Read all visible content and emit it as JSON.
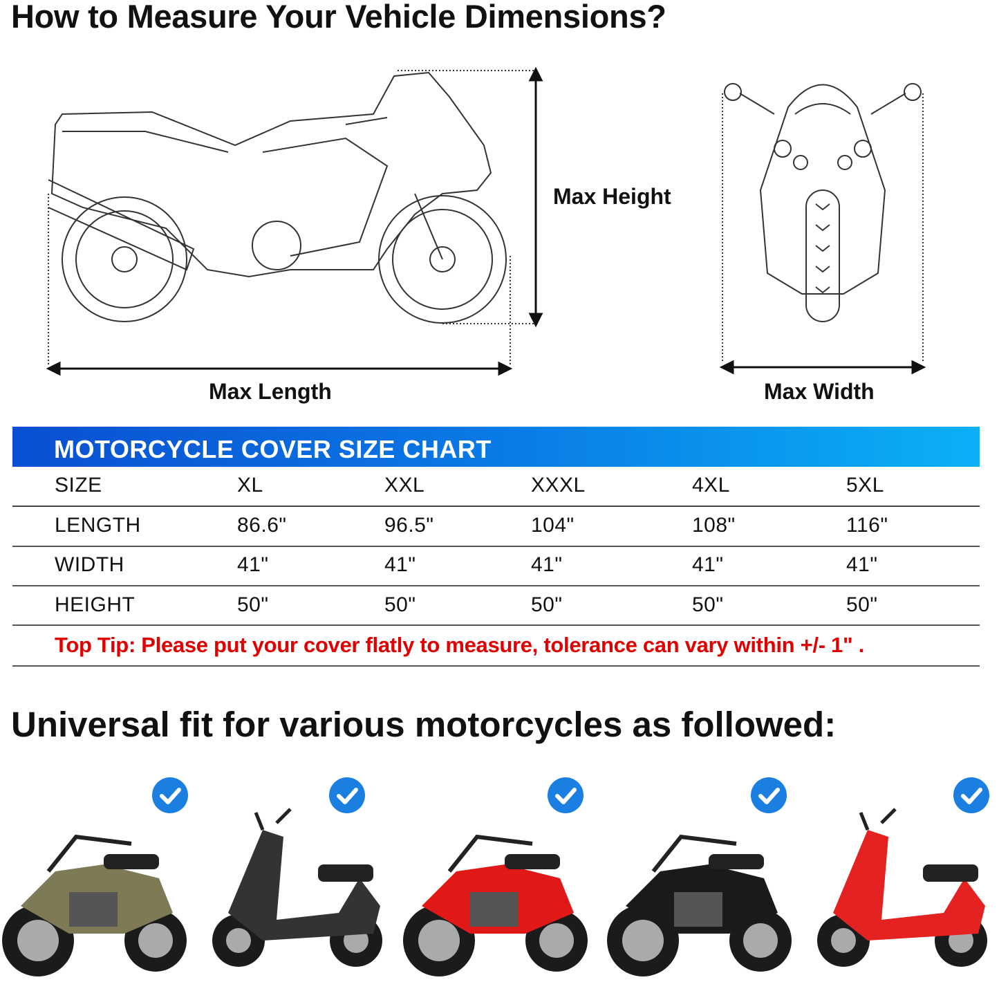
{
  "heading": "How to Measure Your Vehicle Dimensions?",
  "diagram": {
    "max_height": "Max Height",
    "max_length": "Max Length",
    "max_width": "Max Width"
  },
  "size_chart": {
    "title": "MOTORCYCLE COVER SIZE CHART",
    "banner_colors": [
      "#0a4fd1",
      "#0bb0f5"
    ],
    "rows": [
      {
        "label": "SIZE",
        "values": [
          "XL",
          "XXL",
          "XXXL",
          "4XL",
          "5XL"
        ]
      },
      {
        "label": "LENGTH",
        "values": [
          "86.6\"",
          "96.5\"",
          "104\"",
          "108\"",
          "116\""
        ]
      },
      {
        "label": "WIDTH",
        "values": [
          "41\"",
          "41\"",
          "41\"",
          "41\"",
          "41\""
        ]
      },
      {
        "label": "HEIGHT",
        "values": [
          "50\"",
          "50\"",
          "50\"",
          "50\"",
          "50\""
        ]
      }
    ],
    "tip": "Top Tip: Please put your cover flatly to measure, tolerance can vary within +/- 1\" .",
    "tip_color": "#e10000"
  },
  "fit_heading": "Universal fit for various motorcycles as followed:",
  "fit_examples": [
    {
      "type": "cruiser",
      "color": "#7d7a55",
      "icon": "check-circle-icon"
    },
    {
      "type": "scooter",
      "color": "#333333",
      "icon": "check-circle-icon"
    },
    {
      "type": "sport bike",
      "color": "#e01818",
      "icon": "check-circle-icon"
    },
    {
      "type": "cruiser",
      "color": "#1a1a1a",
      "icon": "check-circle-icon"
    },
    {
      "type": "vespa scooter",
      "color": "#e52222",
      "icon": "check-circle-icon"
    }
  ]
}
